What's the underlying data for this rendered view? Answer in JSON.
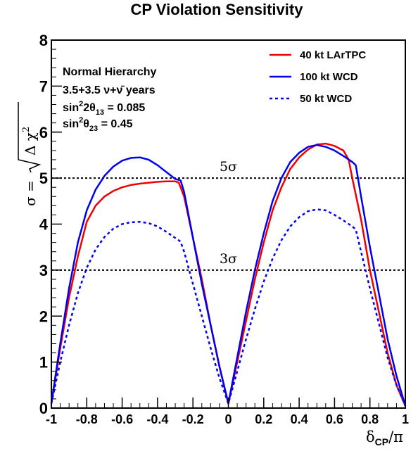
{
  "chart_data": {
    "type": "line",
    "title": "CP Violation Sensitivity",
    "xlabel": {
      "main": "δ",
      "sub": "CP",
      "suffix": "/π"
    },
    "ylabel": {
      "lhs": "σ =",
      "radicand": "Δ χ",
      "sup": "2"
    },
    "xlim": [
      -1,
      1
    ],
    "ylim": [
      0,
      8
    ],
    "xticks": [
      "-1",
      "-0.8",
      "-0.6",
      "-0.4",
      "-0.2",
      "0",
      "0.2",
      "0.4",
      "0.6",
      "0.8",
      "1"
    ],
    "xtick_values": [
      -1,
      -0.8,
      -0.6,
      -0.4,
      -0.2,
      0,
      0.2,
      0.4,
      0.6,
      0.8,
      1
    ],
    "yticks": [
      "0",
      "1",
      "2",
      "3",
      "4",
      "5",
      "6",
      "7",
      "8"
    ],
    "ytick_values": [
      0,
      1,
      2,
      3,
      4,
      5,
      6,
      7,
      8
    ],
    "grid": false,
    "legend_position": "top-right",
    "info": {
      "hierarchy": "Normal Hierarchy",
      "years": {
        "text": "3.5+3.5 ν+ν̄ years"
      },
      "theta13": {
        "pre": "sin",
        "sup": "2",
        "mid": "2θ",
        "sub": "13",
        "post": " = 0.085"
      },
      "theta23": {
        "pre": "sin",
        "sup": "2",
        "mid": "θ",
        "sub": "23",
        "post": " = 0.45"
      }
    },
    "reference_lines": [
      {
        "label": "5σ",
        "y": 5,
        "label_x": 0
      },
      {
        "label": "3σ",
        "y": 3,
        "label_x": 0
      }
    ],
    "series": [
      {
        "name": "40 kt LArTPC",
        "color": "#ee0000",
        "dash": "solid",
        "x": [
          -1,
          -0.95,
          -0.9,
          -0.85,
          -0.8,
          -0.75,
          -0.7,
          -0.65,
          -0.6,
          -0.55,
          -0.5,
          -0.45,
          -0.4,
          -0.35,
          -0.3,
          -0.28,
          -0.25,
          -0.2,
          -0.15,
          -0.1,
          -0.05,
          0,
          0.05,
          0.1,
          0.15,
          0.2,
          0.25,
          0.3,
          0.35,
          0.4,
          0.45,
          0.5,
          0.55,
          0.6,
          0.65,
          0.68,
          0.7,
          0.75,
          0.8,
          0.85,
          0.9,
          0.95,
          1
        ],
        "y": [
          0.1,
          1.3,
          2.4,
          3.3,
          4.05,
          4.4,
          4.6,
          4.72,
          4.8,
          4.85,
          4.88,
          4.9,
          4.92,
          4.93,
          4.93,
          4.9,
          4.6,
          3.7,
          2.8,
          1.8,
          0.9,
          0.1,
          1.0,
          1.9,
          2.8,
          3.6,
          4.3,
          4.8,
          5.2,
          5.45,
          5.62,
          5.73,
          5.75,
          5.7,
          5.6,
          5.4,
          5.0,
          4.1,
          3.0,
          2.1,
          1.2,
          0.5,
          0.05
        ]
      },
      {
        "name": "100 kt WCD",
        "color": "#0000ee",
        "dash": "solid",
        "x": [
          -1,
          -0.95,
          -0.9,
          -0.85,
          -0.8,
          -0.75,
          -0.7,
          -0.65,
          -0.6,
          -0.55,
          -0.5,
          -0.45,
          -0.4,
          -0.35,
          -0.3,
          -0.27,
          -0.25,
          -0.2,
          -0.15,
          -0.1,
          -0.05,
          0,
          0.05,
          0.1,
          0.15,
          0.2,
          0.25,
          0.3,
          0.35,
          0.4,
          0.45,
          0.5,
          0.55,
          0.6,
          0.65,
          0.7,
          0.72,
          0.75,
          0.8,
          0.85,
          0.9,
          0.95,
          1
        ],
        "y": [
          0.1,
          1.4,
          2.6,
          3.6,
          4.3,
          4.75,
          5.05,
          5.25,
          5.38,
          5.44,
          5.45,
          5.4,
          5.28,
          5.13,
          4.98,
          4.95,
          4.7,
          3.7,
          2.7,
          1.8,
          0.9,
          0.1,
          1.1,
          2.1,
          3.0,
          3.8,
          4.5,
          5.0,
          5.35,
          5.55,
          5.68,
          5.72,
          5.68,
          5.6,
          5.48,
          5.35,
          5.28,
          4.6,
          3.5,
          2.5,
          1.5,
          0.7,
          0.05
        ]
      },
      {
        "name": "50 kt WCD",
        "color": "#0000ee",
        "dash": "dotted",
        "x": [
          -1,
          -0.95,
          -0.9,
          -0.85,
          -0.8,
          -0.75,
          -0.7,
          -0.65,
          -0.6,
          -0.55,
          -0.5,
          -0.45,
          -0.4,
          -0.35,
          -0.3,
          -0.27,
          -0.25,
          -0.2,
          -0.15,
          -0.1,
          -0.05,
          0,
          0.05,
          0.1,
          0.15,
          0.2,
          0.25,
          0.3,
          0.35,
          0.4,
          0.45,
          0.5,
          0.55,
          0.6,
          0.65,
          0.7,
          0.72,
          0.75,
          0.8,
          0.85,
          0.9,
          0.95,
          1
        ],
        "y": [
          0.1,
          1.0,
          1.8,
          2.5,
          3.05,
          3.45,
          3.72,
          3.9,
          4.0,
          4.04,
          4.05,
          4.02,
          3.95,
          3.83,
          3.7,
          3.62,
          3.4,
          2.7,
          2.0,
          1.3,
          0.65,
          0.1,
          0.8,
          1.5,
          2.15,
          2.75,
          3.25,
          3.65,
          3.95,
          4.15,
          4.28,
          4.32,
          4.3,
          4.2,
          4.08,
          3.95,
          3.88,
          3.4,
          2.6,
          1.85,
          1.1,
          0.5,
          0.05
        ]
      }
    ]
  }
}
